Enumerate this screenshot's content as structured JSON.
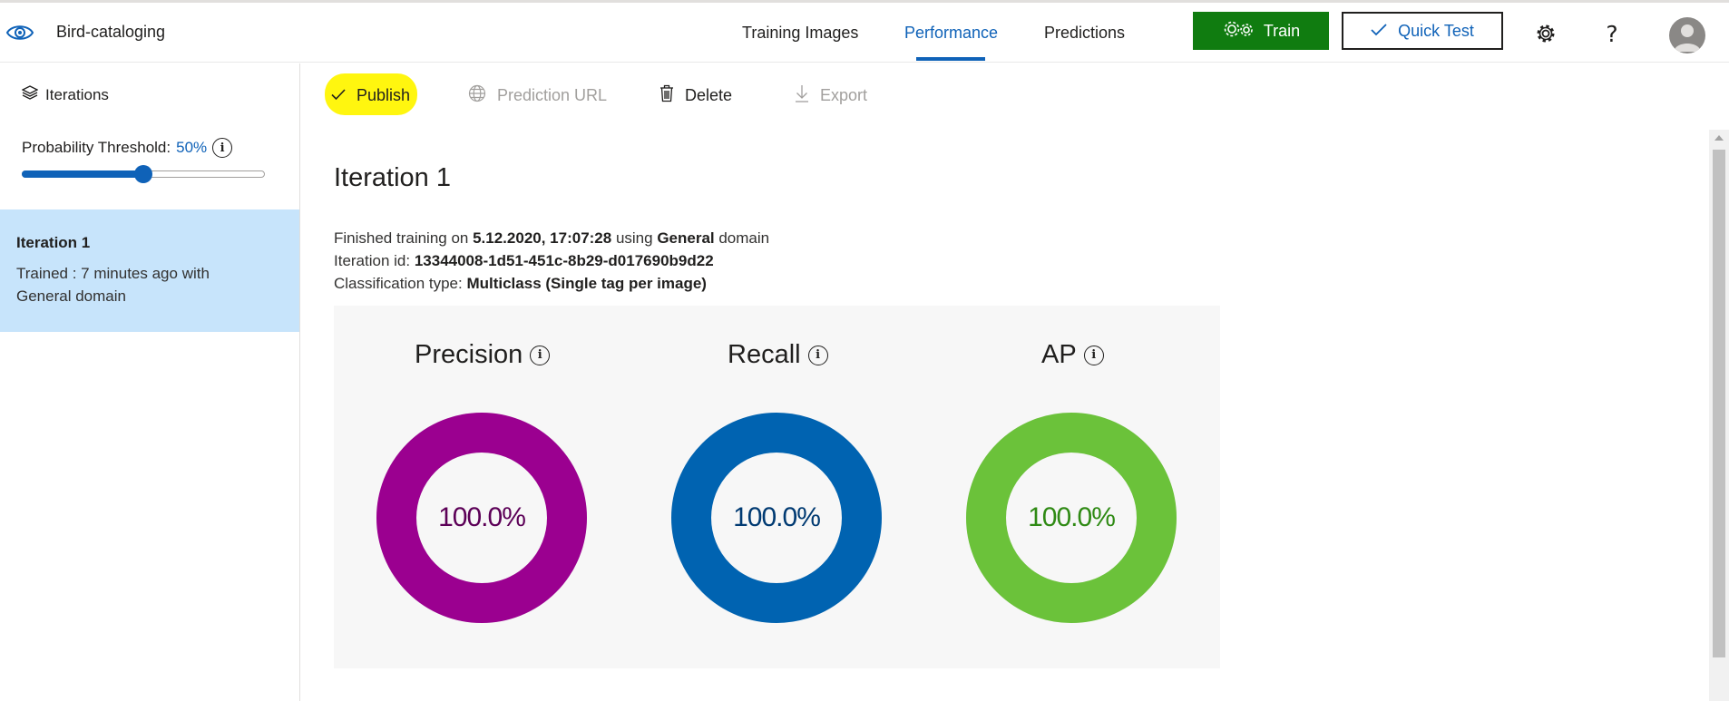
{
  "header": {
    "app_name": "Bird-cataloging",
    "tabs": [
      {
        "label": "Training Images"
      },
      {
        "label": "Performance",
        "active": true
      },
      {
        "label": "Predictions"
      }
    ],
    "train_label": "Train",
    "quick_test_label": "Quick Test",
    "help_label": "?"
  },
  "sidebar": {
    "title": "Iterations",
    "threshold_label": "Probability Threshold:",
    "threshold_value": "50%",
    "threshold_fraction": 0.5,
    "iterations": [
      {
        "name": "Iteration 1",
        "description": "Trained : 7 minutes ago with General domain",
        "selected": true
      }
    ]
  },
  "toolbar": {
    "publish_label": "Publish",
    "prediction_url_label": "Prediction URL",
    "delete_label": "Delete",
    "export_label": "Export"
  },
  "main": {
    "title": "Iteration 1",
    "finished_prefix": "Finished training on ",
    "finished_date": "5.12.2020, 17:07:28",
    "finished_mid": " using ",
    "domain": "General",
    "finished_suffix": " domain",
    "iteration_id_label": "Iteration id: ",
    "iteration_id": "13344008-1d51-451c-8b29-d017690b9d22",
    "classification_label": "Classification type: ",
    "classification_type": "Multiclass (Single tag per image)"
  },
  "metrics": [
    {
      "name": "Precision",
      "value": "100.0%",
      "fraction": 1.0,
      "color": "#9b0090",
      "text_color": "#5c0057"
    },
    {
      "name": "Recall",
      "value": "100.0%",
      "fraction": 1.0,
      "color": "#0063b1",
      "text_color": "#003a72"
    },
    {
      "name": "AP",
      "value": "100.0%",
      "fraction": 1.0,
      "color": "#6bc23a",
      "text_color": "#2f8a14"
    }
  ],
  "colors": {
    "accent": "#0f62b8",
    "train_green": "#107c10",
    "selected_bg": "#c7e4fb",
    "highlight": "#fff60f"
  }
}
